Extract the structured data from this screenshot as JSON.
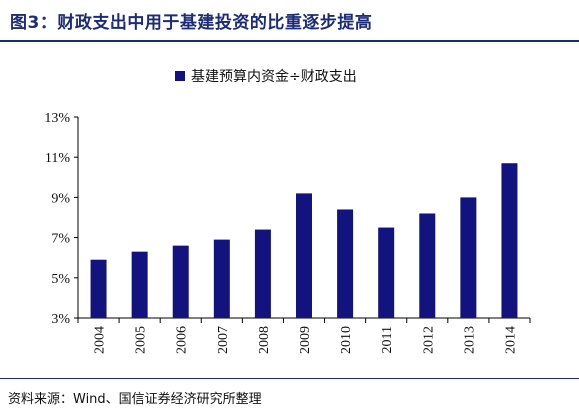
{
  "header": {
    "title": "图3：财政支出中用于基建投资的比重逐步提高"
  },
  "footer": {
    "source": "资料来源：Wind、国信证券经济研究所整理"
  },
  "chart_data": {
    "type": "bar",
    "categories": [
      "2004",
      "2005",
      "2006",
      "2007",
      "2008",
      "2009",
      "2010",
      "2011",
      "2012",
      "2013",
      "2014"
    ],
    "series": [
      {
        "name": "基建预算内资金÷财政支出",
        "color": "#13137f",
        "values": [
          5.9,
          6.3,
          6.6,
          6.9,
          7.4,
          9.2,
          8.4,
          7.5,
          8.2,
          9.0,
          10.7
        ]
      }
    ],
    "ylim": [
      3,
      13
    ],
    "yticks": [
      3,
      5,
      7,
      9,
      11,
      13
    ],
    "ytick_labels": [
      "3%",
      "5%",
      "7%",
      "9%",
      "11%",
      "13%"
    ],
    "legend_position": "top-center",
    "grid": false
  }
}
